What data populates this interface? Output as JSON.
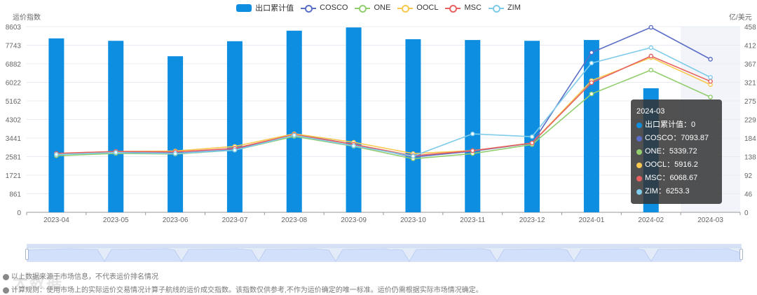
{
  "legend": {
    "items": [
      {
        "label": "出口累计值",
        "color": "#0e8ee0",
        "type": "bar"
      },
      {
        "label": "COSCO",
        "color": "#5b6ec6",
        "type": "line"
      },
      {
        "label": "ONE",
        "color": "#92cd6e",
        "type": "line"
      },
      {
        "label": "OOCL",
        "color": "#f7c94f",
        "type": "line"
      },
      {
        "label": "MSC",
        "color": "#e86060",
        "type": "line"
      },
      {
        "label": "ZIM",
        "color": "#7fcbea",
        "type": "line"
      }
    ]
  },
  "axes": {
    "left_name": "运价指数",
    "right_name": "亿/美元",
    "left_ticks": [
      "0",
      "861",
      "1721",
      "2581",
      "3441",
      "4302",
      "5162",
      "6022",
      "6882",
      "7743",
      "8603"
    ],
    "right_ticks": [
      "0",
      "46",
      "92",
      "138",
      "184",
      "229",
      "275",
      "321",
      "367",
      "412",
      "458"
    ]
  },
  "tooltip": {
    "title": "2024-03",
    "rows": [
      {
        "label": "出口累计值",
        "value": "0",
        "color": "#0e8ee0"
      },
      {
        "label": "COSCO",
        "value": "7093.87",
        "color": "#5b6ec6"
      },
      {
        "label": "ONE",
        "value": "5339.72",
        "color": "#92cd6e"
      },
      {
        "label": "OOCL",
        "value": "5916.2",
        "color": "#f7c94f"
      },
      {
        "label": "MSC",
        "value": "6068.67",
        "color": "#e86060"
      },
      {
        "label": "ZIM",
        "value": "6253.3",
        "color": "#7fcbea"
      }
    ]
  },
  "notes": [
    "以上数据来源于市场信息，不代表运价排名情况",
    "计算规则：使用市场上的实际运价交易情况计算子航线的运价成交指数。该指数仅供参考,不作为运价确定的唯一标准。运价仍需根据实际市场情况确定。"
  ],
  "watermark": "大数据",
  "chart_data": {
    "type": "bar+line",
    "title": "",
    "categories": [
      "2023-04",
      "2023-05",
      "2023-06",
      "2023-07",
      "2023-08",
      "2023-09",
      "2023-10",
      "2023-11",
      "2023-12",
      "2024-01",
      "2024-02",
      "2024-03"
    ],
    "left_axis": {
      "name": "运价指数",
      "range": [
        0,
        8603
      ]
    },
    "right_axis": {
      "name": "亿/美元",
      "range": [
        0,
        458
      ]
    },
    "highlighted_category": "2024-03",
    "series": [
      {
        "name": "出口累计值",
        "type": "bar",
        "axis": "right",
        "color": "#0e8ee0",
        "values": [
          429,
          423,
          385,
          422,
          448,
          456,
          427,
          425,
          423,
          425,
          306,
          0
        ]
      },
      {
        "name": "COSCO",
        "type": "line",
        "axis": "left",
        "color": "#5b6ec6",
        "values": [
          2700,
          2780,
          2740,
          2900,
          3620,
          3150,
          2560,
          2830,
          3200,
          7400,
          8570,
          7093.87
        ]
      },
      {
        "name": "ONE",
        "type": "line",
        "axis": "left",
        "color": "#92cd6e",
        "values": [
          2620,
          2730,
          2700,
          2880,
          3520,
          3060,
          2480,
          2720,
          3140,
          5485,
          6590,
          5339.72
        ]
      },
      {
        "name": "OOCL",
        "type": "line",
        "axis": "left",
        "color": "#f7c94f",
        "values": [
          2720,
          2820,
          2840,
          3050,
          3640,
          3245,
          2720,
          2860,
          3210,
          6100,
          7170,
          5916.2
        ]
      },
      {
        "name": "MSC",
        "type": "line",
        "axis": "left",
        "color": "#e86060",
        "values": [
          2730,
          2820,
          2800,
          2960,
          3600,
          3150,
          2620,
          2855,
          3213,
          6005,
          7240,
          6068.67
        ]
      },
      {
        "name": "ZIM",
        "type": "line",
        "axis": "left",
        "color": "#7fcbea",
        "values": [
          2680,
          2770,
          2720,
          2880,
          3570,
          3080,
          2600,
          3635,
          3505,
          6913,
          7630,
          6253.3
        ]
      }
    ],
    "grid": true,
    "legend_position": "top"
  }
}
